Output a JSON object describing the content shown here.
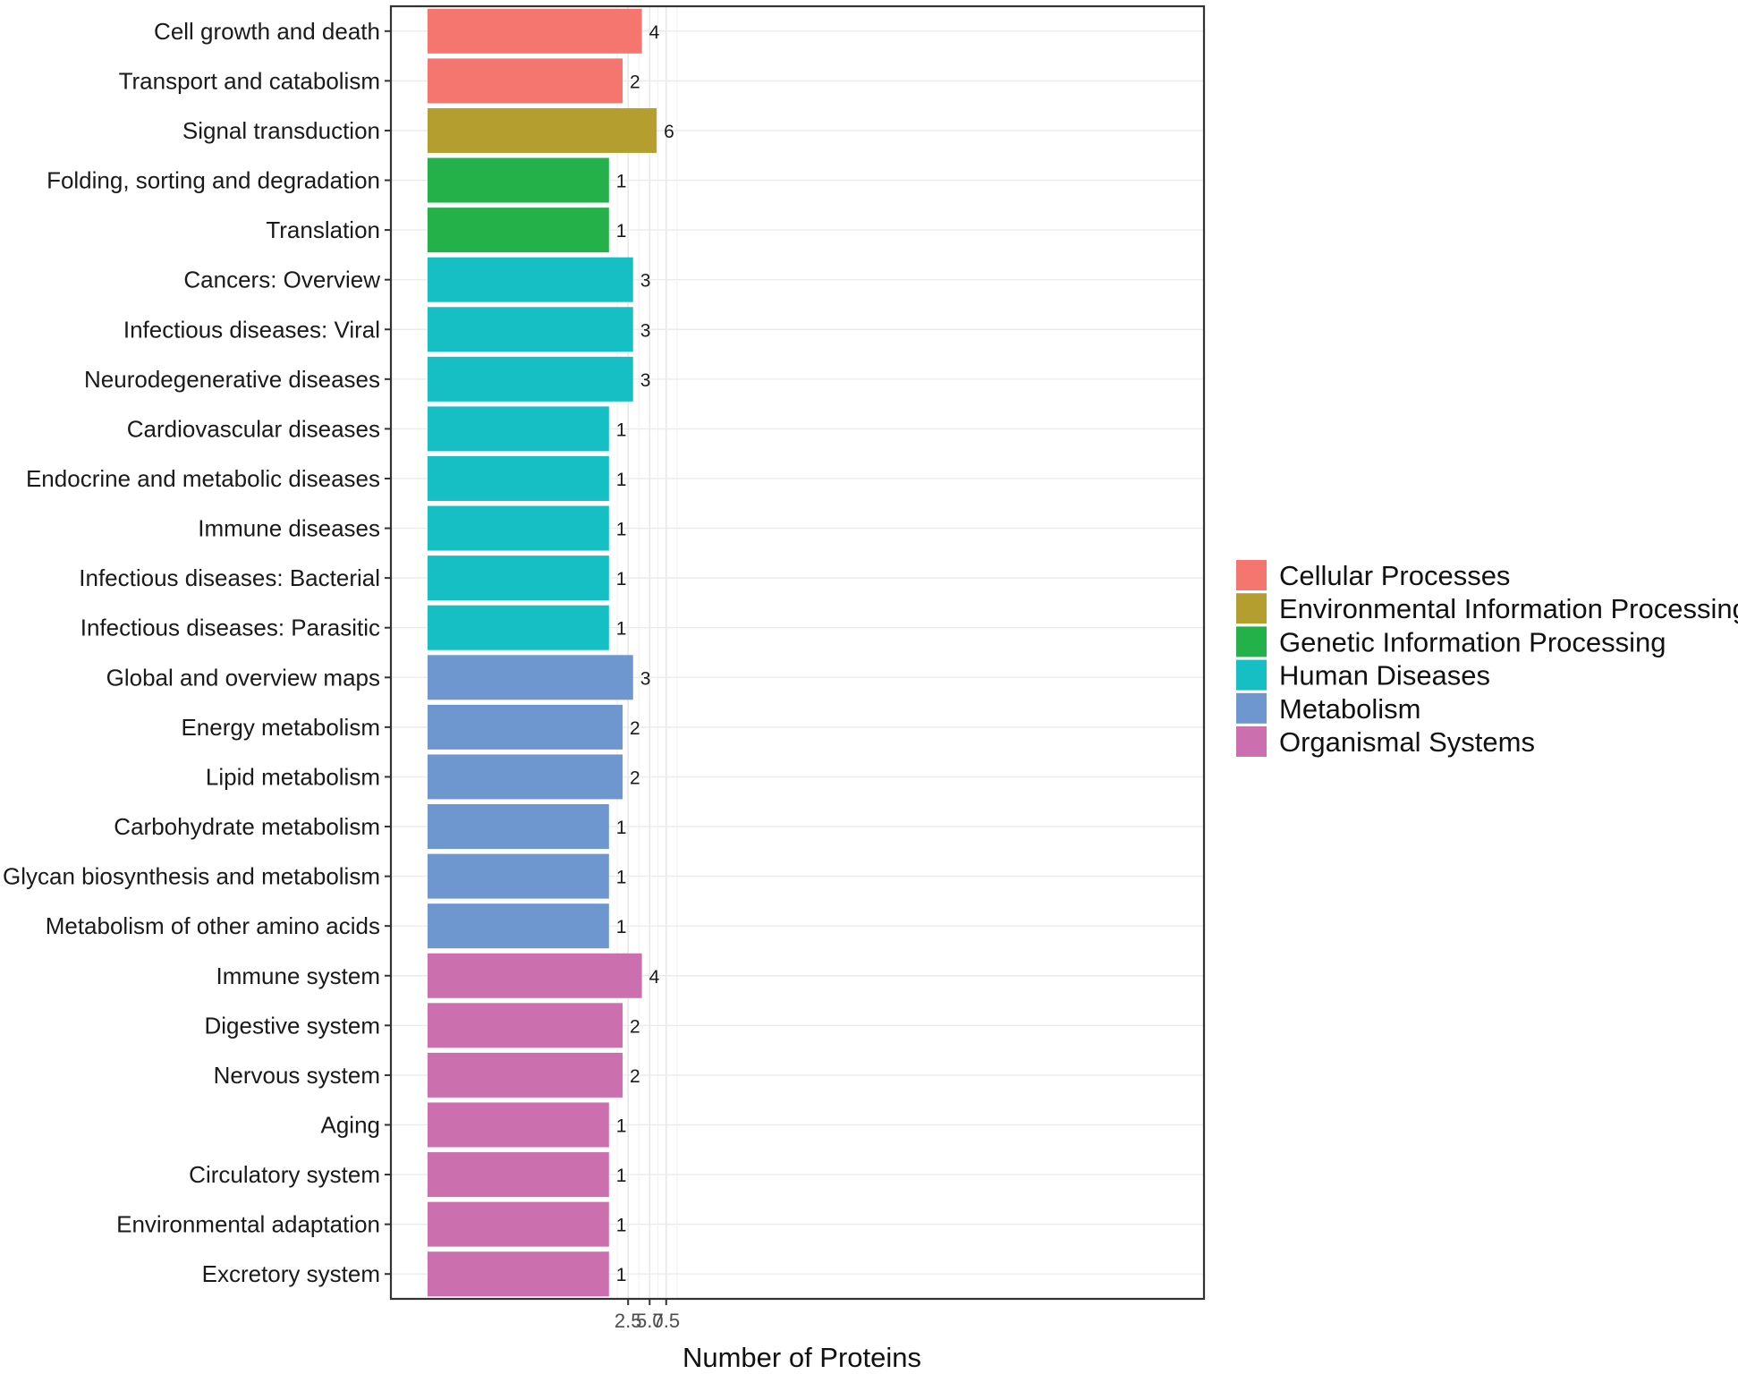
{
  "chart_data": {
    "type": "bar",
    "orientation": "horizontal",
    "title": "",
    "xlabel": "Number of Proteins",
    "ylabel": "",
    "x_scale": "sqrt",
    "xlim": [
      0,
      9
    ],
    "x_ticks": [
      2.5,
      5.0,
      7.5
    ],
    "x_tick_labels": [
      "2.5",
      "5.0",
      "7.5"
    ],
    "grid": true,
    "legend_position": "right",
    "groups": [
      {
        "name": "Cellular Processes",
        "color": "#F4766E"
      },
      {
        "name": "Environmental Information Processing",
        "color": "#B59E30"
      },
      {
        "name": "Genetic Information Processing",
        "color": "#25B14A"
      },
      {
        "name": "Human Diseases",
        "color": "#15BFC4"
      },
      {
        "name": "Metabolism",
        "color": "#6E96CF"
      },
      {
        "name": "Organismal Systems",
        "color": "#CC6FAE"
      }
    ],
    "bars": [
      {
        "category": "Cell growth and death",
        "value": 4,
        "group": "Cellular Processes"
      },
      {
        "category": "Transport and catabolism",
        "value": 2,
        "group": "Cellular Processes"
      },
      {
        "category": "Signal transduction",
        "value": 6,
        "group": "Environmental Information Processing"
      },
      {
        "category": "Folding, sorting and degradation",
        "value": 1,
        "group": "Genetic Information Processing"
      },
      {
        "category": "Translation",
        "value": 1,
        "group": "Genetic Information Processing"
      },
      {
        "category": "Cancers: Overview",
        "value": 3,
        "group": "Human Diseases"
      },
      {
        "category": "Infectious diseases: Viral",
        "value": 3,
        "group": "Human Diseases"
      },
      {
        "category": "Neurodegenerative diseases",
        "value": 3,
        "group": "Human Diseases"
      },
      {
        "category": "Cardiovascular diseases",
        "value": 1,
        "group": "Human Diseases"
      },
      {
        "category": "Endocrine and metabolic diseases",
        "value": 1,
        "group": "Human Diseases"
      },
      {
        "category": "Immune diseases",
        "value": 1,
        "group": "Human Diseases"
      },
      {
        "category": "Infectious diseases: Bacterial",
        "value": 1,
        "group": "Human Diseases"
      },
      {
        "category": "Infectious diseases: Parasitic",
        "value": 1,
        "group": "Human Diseases"
      },
      {
        "category": "Global and overview maps",
        "value": 3,
        "group": "Metabolism"
      },
      {
        "category": "Energy metabolism",
        "value": 2,
        "group": "Metabolism"
      },
      {
        "category": "Lipid metabolism",
        "value": 2,
        "group": "Metabolism"
      },
      {
        "category": "Carbohydrate metabolism",
        "value": 1,
        "group": "Metabolism"
      },
      {
        "category": "Glycan biosynthesis and metabolism",
        "value": 1,
        "group": "Metabolism"
      },
      {
        "category": "Metabolism of other amino acids",
        "value": 1,
        "group": "Metabolism"
      },
      {
        "category": "Immune system",
        "value": 4,
        "group": "Organismal Systems"
      },
      {
        "category": "Digestive system",
        "value": 2,
        "group": "Organismal Systems"
      },
      {
        "category": "Nervous system",
        "value": 2,
        "group": "Organismal Systems"
      },
      {
        "category": "Aging",
        "value": 1,
        "group": "Organismal Systems"
      },
      {
        "category": "Circulatory system",
        "value": 1,
        "group": "Organismal Systems"
      },
      {
        "category": "Environmental adaptation",
        "value": 1,
        "group": "Organismal Systems"
      },
      {
        "category": "Excretory system",
        "value": 1,
        "group": "Organismal Systems"
      }
    ]
  }
}
